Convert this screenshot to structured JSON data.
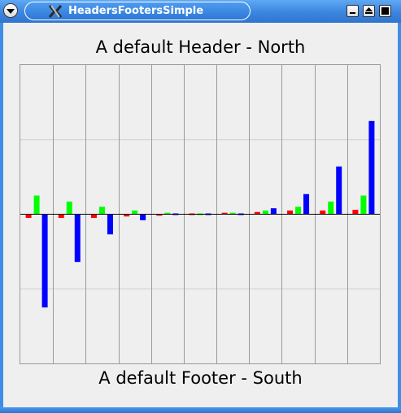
{
  "window": {
    "title": "HeadersFootersSimple",
    "buttons": [
      "menu-icon",
      "minimize-icon",
      "maximize-icon",
      "close-icon"
    ]
  },
  "header": {
    "text": "A default Header - North"
  },
  "footer": {
    "text": "A default Footer - South"
  },
  "colors": {
    "series1": "#ff0000",
    "series2": "#00ff00",
    "series3": "#0000ff",
    "grid": "#9a9a9a",
    "zero_line": "#000000"
  },
  "chart_data": {
    "type": "bar",
    "categories": [
      "",
      "",
      "",
      "",
      "",
      "",
      "",
      "",
      "",
      "",
      ""
    ],
    "series": [
      {
        "values": [
          -0.5,
          -0.5,
          -0.5,
          -0.3,
          -0.2,
          -0.1,
          0.2,
          0.3,
          0.5,
          0.5,
          0.6
        ]
      },
      {
        "values": [
          2.5,
          1.7,
          1.0,
          0.5,
          0.2,
          0.1,
          0.2,
          0.5,
          1.0,
          1.7,
          2.5
        ]
      },
      {
        "values": [
          -12.5,
          -6.4,
          -2.7,
          -0.8,
          -0.1,
          0.0,
          0.1,
          0.8,
          2.7,
          6.4,
          12.5
        ]
      }
    ],
    "ylim": [
      -20,
      20
    ],
    "grid": true,
    "legend": "none"
  }
}
